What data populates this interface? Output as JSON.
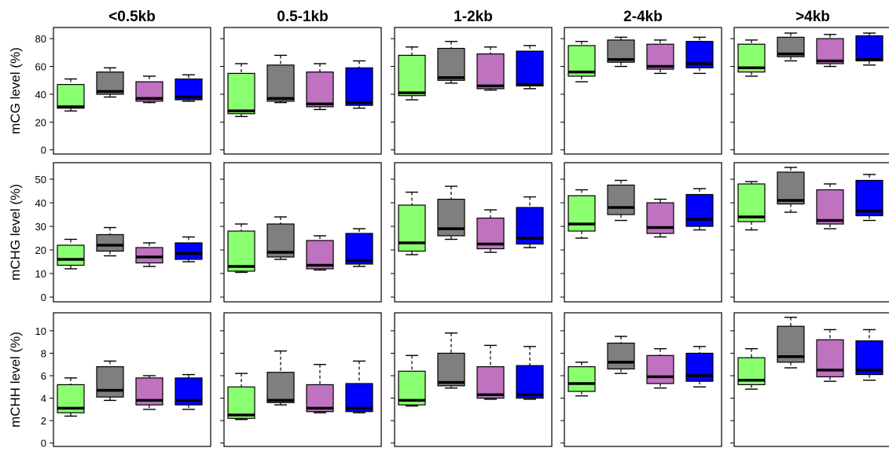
{
  "colors": {
    "green": "#8aff70",
    "gray": "#7f7f7f",
    "purple": "#bf72bf",
    "blue": "#0000ff"
  },
  "chart_data": {
    "type": "boxplot",
    "columns": [
      "<0.5kb",
      "0.5-1kb",
      "1-2kb",
      "2-4kb",
      ">4kb"
    ],
    "series_colors": [
      "green",
      "gray",
      "purple",
      "blue"
    ],
    "rows": [
      {
        "ylabel": "mCG level (%)",
        "ylim": [
          -3,
          88
        ],
        "yticks": [
          0,
          20,
          40,
          60,
          80
        ],
        "panels": [
          [
            [
              28,
              30,
              31,
              47,
              51
            ],
            [
              38,
              40,
              42,
              56,
              59
            ],
            [
              34,
              35,
              37,
              49,
              53
            ],
            [
              35,
              36,
              38,
              51,
              54
            ]
          ],
          [
            [
              24,
              26,
              28,
              55,
              62
            ],
            [
              34,
              35,
              37,
              61,
              68
            ],
            [
              29,
              31,
              33,
              56,
              62
            ],
            [
              30,
              32,
              34,
              59,
              64
            ]
          ],
          [
            [
              36,
              39,
              41,
              68,
              74
            ],
            [
              48,
              50,
              52,
              73,
              78
            ],
            [
              43,
              44,
              46,
              69,
              74
            ],
            [
              44,
              46,
              47,
              71,
              75
            ]
          ],
          [
            [
              49,
              53,
              56,
              75,
              78
            ],
            [
              60,
              63,
              65,
              79,
              81
            ],
            [
              55,
              58,
              60,
              76,
              79
            ],
            [
              55,
              59,
              62,
              78,
              81
            ]
          ],
          [
            [
              53,
              56,
              59,
              76,
              79
            ],
            [
              64,
              67,
              69,
              81,
              84
            ],
            [
              60,
              62,
              64,
              80,
              83
            ],
            [
              61,
              64,
              65,
              82,
              84
            ]
          ]
        ]
      },
      {
        "ylabel": "mCHG level (%)",
        "ylim": [
          -2,
          57
        ],
        "yticks": [
          0,
          10,
          20,
          30,
          40,
          50
        ],
        "panels": [
          [
            [
              12,
              13.5,
              16,
              22,
              24.5
            ],
            [
              17.5,
              19.5,
              22,
              26.5,
              29.5
            ],
            [
              13,
              14.5,
              17,
              21,
              23
            ],
            [
              15,
              16,
              18.5,
              23,
              25.5
            ]
          ],
          [
            [
              10.5,
              11,
              13,
              28,
              31
            ],
            [
              16,
              17,
              19,
              31,
              34
            ],
            [
              11.5,
              12,
              13.5,
              24,
              26
            ],
            [
              13,
              14,
              15.5,
              27,
              29
            ]
          ],
          [
            [
              18,
              19.5,
              23,
              39,
              44.5
            ],
            [
              24.5,
              26,
              29,
              41.5,
              47
            ],
            [
              19,
              20.5,
              22.5,
              33.5,
              37
            ],
            [
              21,
              22.5,
              25,
              38,
              42.5
            ]
          ],
          [
            [
              25,
              28,
              31,
              43,
              45.5
            ],
            [
              32.5,
              35,
              38,
              47.5,
              49.5
            ],
            [
              25.5,
              27,
              29.5,
              40,
              41.5
            ],
            [
              28.5,
              30,
              33,
              43.5,
              46
            ]
          ],
          [
            [
              28.5,
              32,
              34,
              48,
              49
            ],
            [
              36,
              39.5,
              41,
              53,
              55
            ],
            [
              29,
              31,
              32.5,
              45.5,
              48
            ],
            [
              32.5,
              34.5,
              36.5,
              49.5,
              52
            ]
          ]
        ]
      },
      {
        "ylabel": "mCHH level (%)",
        "ylim": [
          -0.3,
          11.6
        ],
        "yticks": [
          0,
          2,
          4,
          6,
          8,
          10
        ],
        "panels": [
          [
            [
              2.4,
              2.7,
              3.1,
              5.2,
              5.8
            ],
            [
              3.8,
              4.1,
              4.7,
              6.8,
              7.3
            ],
            [
              3.0,
              3.4,
              3.8,
              5.8,
              6.0
            ],
            [
              3.0,
              3.4,
              3.8,
              5.8,
              6.1
            ]
          ],
          [
            [
              2.1,
              2.2,
              2.5,
              5.0,
              6.2
            ],
            [
              3.4,
              3.6,
              3.8,
              6.3,
              8.2
            ],
            [
              2.7,
              2.8,
              3.1,
              5.2,
              7.0
            ],
            [
              2.7,
              2.8,
              3.1,
              5.3,
              7.3
            ]
          ],
          [
            [
              3.3,
              3.4,
              3.8,
              6.4,
              7.8
            ],
            [
              4.9,
              5.1,
              5.4,
              8.0,
              9.8
            ],
            [
              3.9,
              4.0,
              4.3,
              6.8,
              8.7
            ],
            [
              3.9,
              4.0,
              4.3,
              6.9,
              8.6
            ]
          ],
          [
            [
              4.2,
              4.6,
              5.3,
              6.8,
              7.2
            ],
            [
              6.2,
              6.6,
              7.2,
              8.9,
              9.5
            ],
            [
              4.9,
              5.3,
              5.9,
              7.8,
              8.4
            ],
            [
              5.0,
              5.5,
              6.0,
              8.0,
              8.6
            ]
          ],
          [
            [
              4.8,
              5.2,
              5.6,
              7.6,
              8.4
            ],
            [
              6.7,
              7.2,
              7.7,
              10.4,
              11.2
            ],
            [
              5.5,
              5.9,
              6.5,
              9.2,
              10.1
            ],
            [
              5.6,
              6.1,
              6.5,
              9.1,
              10.1
            ]
          ]
        ]
      }
    ]
  }
}
